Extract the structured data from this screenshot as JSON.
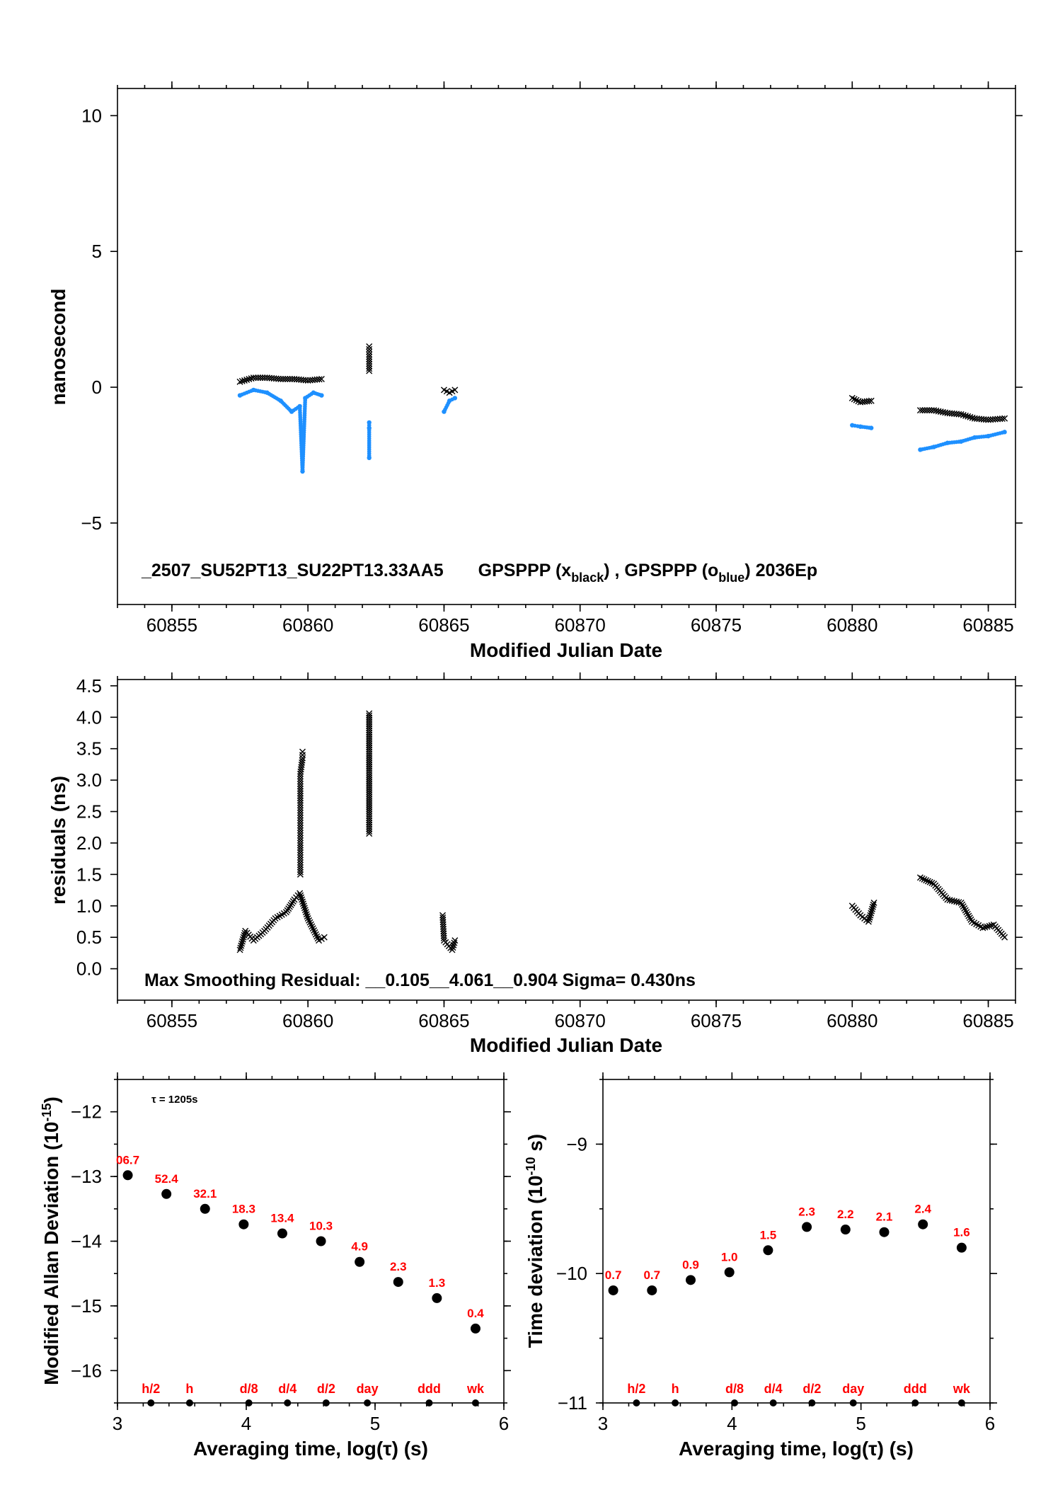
{
  "chart_data": [
    {
      "type": "scatter",
      "ylabel": "nanosecond",
      "xlabel": "Modified Julian Date",
      "xlim": [
        60853.0,
        60886.0
      ],
      "ylim": [
        -8.0,
        11.0
      ],
      "xticks": [
        60855,
        60860,
        60865,
        60870,
        60875,
        60880,
        60885
      ],
      "yticks": [
        -5,
        0,
        5,
        10
      ],
      "ytick_labels": [
        "−5",
        "0",
        "5",
        "10"
      ],
      "annotation": {
        "prefix": "_2507_SU52PT13_SU22PT13.33AA5",
        "gps1": "GPSPPP (x",
        "sub1": "black",
        "mid": ") ,  GPSPPP (o",
        "sub2": "blue",
        "tail": ")  2036Ep"
      },
      "series": [
        {
          "marker": "x",
          "color": "#000000",
          "segments": [
            {
              "x": [
                60857.5,
                60858.0,
                60858.5,
                60859.0,
                60859.5,
                60860.0,
                60860.5
              ],
              "y": [
                0.2,
                0.35,
                0.35,
                0.3,
                0.3,
                0.25,
                0.3
              ]
            },
            {
              "x": [
                60862.25,
                60862.25,
                60862.25,
                60862.25
              ],
              "y": [
                1.5,
                1.3,
                1.2,
                0.6
              ]
            },
            {
              "x": [
                60865.0,
                60865.2,
                60865.4
              ],
              "y": [
                -0.1,
                -0.2,
                -0.1
              ]
            },
            {
              "x": [
                60880.0,
                60880.3,
                60880.7
              ],
              "y": [
                -0.4,
                -0.55,
                -0.5
              ]
            },
            {
              "x": [
                60882.5,
                60883.0,
                60883.5,
                60884.0,
                60884.5,
                60885.0,
                60885.6
              ],
              "y": [
                -0.85,
                -0.85,
                -0.95,
                -1.0,
                -1.15,
                -1.2,
                -1.15
              ]
            }
          ]
        },
        {
          "marker": "o",
          "color": "#1e90ff",
          "segments": [
            {
              "x": [
                60857.5,
                60858.0,
                60858.5,
                60859.0,
                60859.4,
                60859.7,
                60859.8,
                60859.9,
                60860.2,
                60860.5
              ],
              "y": [
                -0.3,
                -0.1,
                -0.2,
                -0.5,
                -0.9,
                -0.7,
                -3.1,
                -0.4,
                -0.2,
                -0.3
              ]
            },
            {
              "x": [
                60862.25,
                60862.25,
                60862.25
              ],
              "y": [
                -1.3,
                -1.5,
                -2.6
              ]
            },
            {
              "x": [
                60865.0,
                60865.2,
                60865.4
              ],
              "y": [
                -0.9,
                -0.5,
                -0.4
              ]
            },
            {
              "x": [
                60880.0,
                60880.3,
                60880.7
              ],
              "y": [
                -1.4,
                -1.45,
                -1.5
              ]
            },
            {
              "x": [
                60882.5,
                60883.0,
                60883.5,
                60884.0,
                60884.5,
                60885.0,
                60885.6
              ],
              "y": [
                -2.3,
                -2.2,
                -2.05,
                -2.0,
                -1.85,
                -1.8,
                -1.65
              ]
            }
          ]
        }
      ]
    },
    {
      "type": "scatter",
      "ylabel": "residuals (ns)",
      "xlabel": "Modified Julian Date",
      "xlim": [
        60853.0,
        60886.0
      ],
      "ylim": [
        -0.5,
        4.6
      ],
      "xticks": [
        60855,
        60860,
        60865,
        60870,
        60875,
        60880,
        60885
      ],
      "yticks": [
        0.0,
        0.5,
        1.0,
        1.5,
        2.0,
        2.5,
        3.0,
        3.5,
        4.0,
        4.5
      ],
      "ytick_labels": [
        "0.0",
        "0.5",
        "1.0",
        "1.5",
        "2.0",
        "2.5",
        "3.0",
        "3.5",
        "4.0",
        "4.5"
      ],
      "annotation": "Max Smoothing Residual:  __0.105__4.061__0.904  Sigma= 0.430ns",
      "series": [
        {
          "marker": "x",
          "color": "#000000",
          "segments": [
            {
              "x": [
                60857.5,
                60857.7,
                60858.0,
                60858.4,
                60858.8,
                60859.2,
                60859.5,
                60859.7,
                60860.0,
                60860.4,
                60860.6
              ],
              "y": [
                0.3,
                0.6,
                0.45,
                0.6,
                0.8,
                0.9,
                1.1,
                1.2,
                0.8,
                0.45,
                0.5
              ]
            },
            {
              "x": [
                60859.72,
                60859.72,
                60859.72,
                60859.72,
                60859.72,
                60859.72,
                60859.72,
                60859.72,
                60859.72,
                60859.8,
                60859.8
              ],
              "y": [
                1.5,
                1.65,
                1.85,
                2.0,
                2.2,
                2.4,
                2.6,
                2.9,
                3.1,
                3.35,
                3.45
              ]
            },
            {
              "x": [
                60862.25,
                60862.25,
                60862.25
              ],
              "y": [
                4.06,
                2.5,
                2.15
              ]
            },
            {
              "x": [
                60864.95,
                60865.0,
                60865.3,
                60865.4
              ],
              "y": [
                0.85,
                0.45,
                0.3,
                0.45
              ]
            },
            {
              "x": [
                60880.0,
                60880.3,
                60880.6,
                60880.8
              ],
              "y": [
                1.0,
                0.85,
                0.75,
                1.05
              ]
            },
            {
              "x": [
                60882.5,
                60883.0,
                60883.5,
                60884.0,
                60884.4,
                60884.8,
                60885.2,
                60885.6
              ],
              "y": [
                1.45,
                1.35,
                1.1,
                1.05,
                0.75,
                0.65,
                0.7,
                0.5
              ]
            }
          ]
        }
      ]
    },
    {
      "type": "scatter",
      "ylabel": "Modified Allan Deviation (10",
      "ylabel_sup": "-15",
      "ylabel_tail": ")",
      "xlabel": "Averaging time, log(τ) (s)",
      "xlim": [
        3.0,
        6.0
      ],
      "ylim": [
        -16.5,
        -11.5
      ],
      "xticks": [
        3,
        4,
        5,
        6
      ],
      "yticks": [
        -16,
        -15,
        -14,
        -13,
        -12
      ],
      "ytick_labels": [
        "−16",
        "−15",
        "−14",
        "−13",
        "−12"
      ],
      "tau_note": "τ = 1205s",
      "points": {
        "x": [
          3.08,
          3.38,
          3.68,
          3.98,
          4.28,
          4.58,
          4.88,
          5.18,
          5.48,
          5.78
        ],
        "y": [
          -12.98,
          -13.27,
          -13.5,
          -13.74,
          -13.88,
          -14.0,
          -14.32,
          -14.63,
          -14.88,
          -15.35
        ],
        "labels": [
          "06.7",
          "52.4",
          "32.1",
          "18.3",
          "13.4",
          "10.3",
          "4.9",
          "2.3",
          "1.3",
          "0.4"
        ]
      },
      "markers": {
        "x": [
          3.26,
          3.56,
          4.02,
          4.32,
          4.62,
          4.94,
          5.42,
          5.78
        ],
        "labels": [
          "h/2",
          "h",
          "d/8",
          "d/4",
          "d/2",
          "day",
          "ddd",
          "wk"
        ]
      }
    },
    {
      "type": "scatter",
      "ylabel": "Time deviation (10",
      "ylabel_sup": "-10",
      "ylabel_tail": " s)",
      "xlabel": "Averaging time, log(τ) (s)",
      "xlim": [
        3.0,
        6.0
      ],
      "ylim": [
        -11.0,
        -8.5
      ],
      "xticks": [
        3,
        4,
        5,
        6
      ],
      "yticks": [
        -11,
        -10,
        -9
      ],
      "ytick_labels": [
        "−11",
        "−10",
        "−9"
      ],
      "points": {
        "x": [
          3.08,
          3.38,
          3.68,
          3.98,
          4.28,
          4.58,
          4.88,
          5.18,
          5.48,
          5.78
        ],
        "y": [
          -10.13,
          -10.13,
          -10.05,
          -9.99,
          -9.82,
          -9.64,
          -9.66,
          -9.68,
          -9.62,
          -9.8
        ],
        "labels": [
          "0.7",
          "0.7",
          "0.9",
          "1.0",
          "1.5",
          "2.3",
          "2.2",
          "2.1",
          "2.4",
          "1.6"
        ]
      },
      "markers": {
        "x": [
          3.26,
          3.56,
          4.02,
          4.32,
          4.62,
          4.94,
          5.42,
          5.78
        ],
        "labels": [
          "h/2",
          "h",
          "d/8",
          "d/4",
          "d/2",
          "day",
          "ddd",
          "wk"
        ]
      }
    }
  ]
}
